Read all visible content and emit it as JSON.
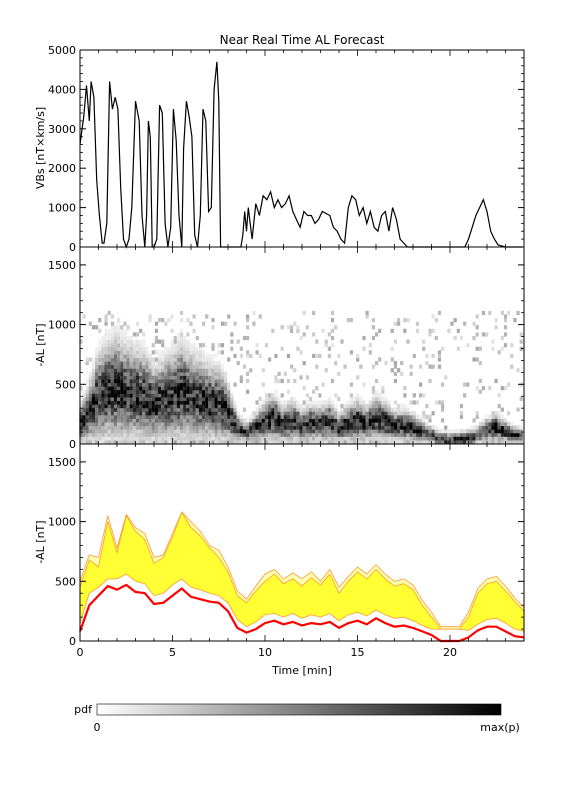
{
  "chart_data": [
    {
      "type": "line",
      "title": "Near Real Time AL Forecast",
      "ylabel": "VBs [nT×km/s]",
      "xlim": [
        0,
        24
      ],
      "ylim": [
        0,
        5000
      ],
      "yticks": [
        0,
        1000,
        2000,
        3000,
        4000,
        5000
      ],
      "series": [
        {
          "x": [
            0,
            0.2,
            0.35,
            0.5,
            0.6,
            0.75,
            0.9,
            1.05,
            1.2,
            1.3,
            1.45,
            1.6,
            1.75,
            1.9,
            2.05,
            2.2,
            2.35,
            2.5,
            2.65,
            2.8,
            3.0,
            3.2,
            3.35,
            3.5,
            3.6,
            3.7,
            3.8,
            3.9,
            4.0,
            4.15,
            4.3,
            4.45,
            4.6,
            4.75,
            4.9,
            5.05,
            5.2,
            5.35,
            5.5,
            5.6,
            5.75,
            5.9,
            6.05,
            6.2,
            6.35,
            6.5,
            6.65,
            6.8,
            6.95,
            7.1,
            7.25,
            7.4,
            7.5,
            7.6,
            7.75,
            7.9,
            8.1,
            8.3,
            8.5,
            8.7,
            8.8,
            8.9,
            9.0,
            9.1,
            9.2,
            9.3,
            9.5,
            9.7,
            9.9,
            10.1,
            10.3,
            10.5,
            10.7,
            10.9,
            11.1,
            11.3,
            11.5,
            11.7,
            11.9,
            12.1,
            12.3,
            12.5,
            12.7,
            12.9,
            13.1,
            13.3,
            13.5,
            13.7,
            13.9,
            14.1,
            14.3,
            14.5,
            14.7,
            14.9,
            15.1,
            15.3,
            15.5,
            15.7,
            15.9,
            16.1,
            16.3,
            16.5,
            16.7,
            16.9,
            17.1,
            17.3,
            17.5,
            17.7,
            17.9,
            18.1,
            18.3,
            18.6,
            19.0,
            19.5,
            20.0,
            20.5,
            20.8,
            21.0,
            21.2,
            21.4,
            21.6,
            21.8,
            22.0,
            22.2,
            22.4,
            22.6,
            23.0,
            23.4,
            23.9
          ],
          "y": [
            2600,
            3300,
            4100,
            3200,
            4200,
            3800,
            1700,
            800,
            100,
            100,
            600,
            4200,
            3500,
            3800,
            3500,
            1500,
            200,
            0,
            200,
            1000,
            3700,
            3200,
            800,
            0,
            800,
            3200,
            2800,
            0,
            0,
            200,
            3600,
            3400,
            600,
            0,
            500,
            3500,
            2700,
            800,
            0,
            2500,
            3700,
            3300,
            2800,
            300,
            0,
            800,
            3500,
            3200,
            900,
            1000,
            4000,
            4700,
            3700,
            0,
            0,
            0,
            0,
            0,
            0,
            0,
            300,
            900,
            400,
            1000,
            600,
            200,
            1100,
            800,
            1300,
            1200,
            1400,
            1000,
            1200,
            1000,
            1100,
            1300,
            900,
            700,
            500,
            900,
            800,
            800,
            600,
            700,
            900,
            850,
            800,
            500,
            400,
            200,
            100,
            1000,
            1300,
            1200,
            800,
            1000,
            600,
            900,
            500,
            400,
            800,
            900,
            400,
            1000,
            700,
            200,
            100,
            0,
            0,
            0,
            0,
            0,
            0,
            0,
            0,
            0,
            0,
            200,
            500,
            800,
            1000,
            1200,
            900,
            400,
            200,
            50,
            0,
            0,
            0
          ]
        }
      ]
    },
    {
      "type": "heatmap",
      "ylabel": "-AL [nT]",
      "xlim": [
        0,
        24
      ],
      "ylim": [
        0,
        1650
      ],
      "yticks": [
        0,
        500,
        1000,
        1500
      ],
      "center": {
        "x": [
          0,
          0.5,
          1,
          1.5,
          2,
          2.5,
          3,
          3.5,
          4,
          4.5,
          5,
          5.5,
          6,
          6.5,
          7,
          7.5,
          8,
          8.5,
          9,
          9.5,
          10,
          10.5,
          11,
          11.5,
          12,
          12.5,
          13,
          13.5,
          14,
          14.5,
          15,
          15.5,
          16,
          16.5,
          17,
          17.5,
          18,
          18.5,
          19,
          19.5,
          20,
          20.5,
          21,
          21.5,
          22,
          22.5,
          23,
          23.5,
          24
        ],
        "y": [
          150,
          250,
          380,
          430,
          450,
          420,
          400,
          380,
          320,
          350,
          380,
          420,
          380,
          360,
          330,
          320,
          250,
          120,
          80,
          120,
          170,
          200,
          150,
          180,
          140,
          160,
          150,
          170,
          120,
          160,
          180,
          150,
          200,
          170,
          130,
          140,
          120,
          90,
          60,
          20,
          20,
          20,
          30,
          60,
          100,
          120,
          90,
          60,
          40
        ]
      },
      "colorbar": {
        "label": "pdf",
        "min_label": "0",
        "max_label": "max(p)"
      }
    },
    {
      "type": "area",
      "ylabel": "-AL [nT]",
      "xlabel": "Time [min]",
      "xlim": [
        0,
        24
      ],
      "ylim": [
        0,
        1650
      ],
      "xticks": [
        0,
        5,
        10,
        15,
        20
      ],
      "yticks": [
        0,
        500,
        1000,
        1500
      ],
      "colors": {
        "median": "#ff0000",
        "band_fill": "#ffff33",
        "band_edge": "#ff9933"
      },
      "x": [
        0,
        0.5,
        1,
        1.5,
        2,
        2.5,
        3,
        3.5,
        4,
        4.5,
        5,
        5.5,
        6,
        6.5,
        7,
        7.5,
        8,
        8.5,
        9,
        9.5,
        10,
        10.5,
        11,
        11.5,
        12,
        12.5,
        13,
        13.5,
        14,
        14.5,
        15,
        15.5,
        16,
        16.5,
        17,
        17.5,
        18,
        18.5,
        19,
        19.5,
        20,
        20.5,
        21,
        21.5,
        22,
        22.5,
        23,
        23.5,
        24
      ],
      "series": [
        {
          "name": "",
          "role": "median",
          "values": [
            80,
            300,
            380,
            460,
            430,
            470,
            410,
            400,
            310,
            320,
            380,
            440,
            370,
            350,
            330,
            320,
            250,
            110,
            70,
            100,
            150,
            170,
            140,
            160,
            130,
            150,
            140,
            160,
            110,
            150,
            170,
            140,
            190,
            150,
            120,
            130,
            110,
            80,
            50,
            0,
            0,
            0,
            30,
            90,
            120,
            120,
            80,
            40,
            30
          ]
        },
        {
          "name": "",
          "role": "band_lower",
          "values": [
            150,
            400,
            450,
            520,
            520,
            560,
            500,
            480,
            380,
            400,
            470,
            520,
            450,
            430,
            400,
            380,
            320,
            180,
            120,
            160,
            220,
            230,
            200,
            230,
            190,
            220,
            200,
            230,
            170,
            220,
            240,
            210,
            260,
            220,
            190,
            200,
            170,
            130,
            100,
            100,
            100,
            100,
            90,
            140,
            180,
            190,
            150,
            100,
            80
          ]
        },
        {
          "name": "",
          "role": "band_upper",
          "values": [
            450,
            680,
            620,
            1000,
            740,
            1050,
            920,
            850,
            650,
            700,
            870,
            1080,
            950,
            880,
            780,
            700,
            580,
            380,
            320,
            420,
            500,
            560,
            480,
            520,
            460,
            530,
            470,
            560,
            400,
            500,
            580,
            520,
            600,
            520,
            460,
            480,
            430,
            300,
            200,
            100,
            100,
            100,
            200,
            400,
            480,
            500,
            420,
            330,
            250
          ]
        },
        {
          "name": "",
          "role": "band_max",
          "values": [
            500,
            720,
            700,
            1050,
            780,
            1060,
            950,
            900,
            700,
            720,
            900,
            1080,
            1000,
            920,
            800,
            760,
            620,
            420,
            350,
            460,
            560,
            600,
            520,
            570,
            520,
            580,
            500,
            600,
            450,
            540,
            620,
            560,
            640,
            560,
            500,
            520,
            470,
            340,
            240,
            120,
            120,
            120,
            240,
            440,
            520,
            540,
            460,
            360,
            280
          ]
        }
      ]
    }
  ]
}
